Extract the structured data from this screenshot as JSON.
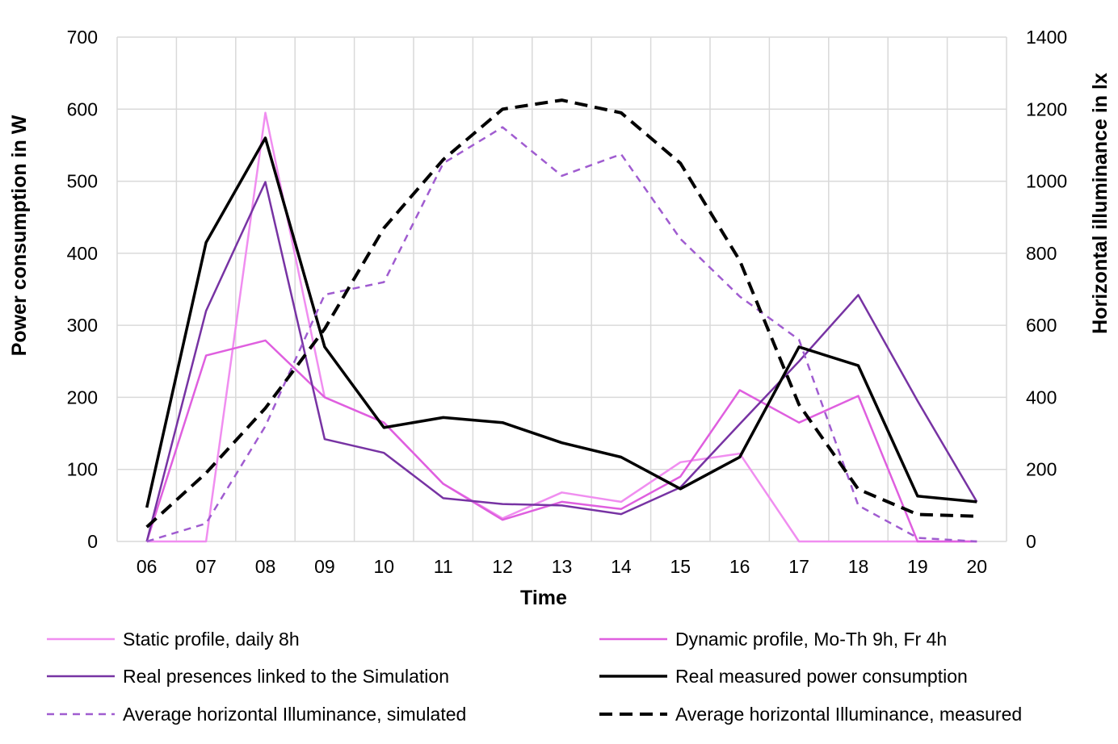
{
  "chart_data": {
    "type": "line",
    "title": "",
    "xlabel": "Time",
    "ylabel": "Power consumption in W",
    "y2label": "Horizontal illuminance in lx",
    "ylim": [
      0,
      700
    ],
    "y2lim": [
      0,
      1400
    ],
    "grid": true,
    "categories": [
      "06",
      "07",
      "08",
      "09",
      "10",
      "11",
      "12",
      "13",
      "14",
      "15",
      "16",
      "17",
      "18",
      "19",
      "20"
    ],
    "yticks": [
      "0",
      "100",
      "200",
      "300",
      "400",
      "500",
      "600",
      "700"
    ],
    "y2ticks": [
      "0",
      "200",
      "400",
      "600",
      "800",
      "1000",
      "1200",
      "1400"
    ],
    "series": [
      {
        "name": "Static profile, daily 8h",
        "axis": "left",
        "color": "#f08ef0",
        "width": 2.5,
        "dash": "",
        "values": [
          0,
          0,
          595,
          200,
          165,
          80,
          32,
          68,
          55,
          110,
          122,
          0,
          0,
          0,
          0
        ]
      },
      {
        "name": "Dynamic profile, Mo-Th 9h, Fr 4h",
        "axis": "left",
        "color": "#df5fdf",
        "width": 2.5,
        "dash": "",
        "values": [
          0,
          258,
          279,
          200,
          165,
          80,
          30,
          55,
          45,
          90,
          210,
          165,
          202,
          0,
          0
        ]
      },
      {
        "name": "Real presences linked to the Simulation",
        "axis": "left",
        "color": "#7733a3",
        "width": 2.5,
        "dash": "",
        "values": [
          0,
          320,
          499,
          142,
          123,
          60,
          52,
          50,
          38,
          75,
          163,
          250,
          342,
          195,
          55
        ]
      },
      {
        "name": "Real measured power consumption",
        "axis": "left",
        "color": "#000000",
        "width": 3.5,
        "dash": "",
        "values": [
          47,
          415,
          560,
          270,
          158,
          172,
          165,
          137,
          117,
          73,
          117,
          270,
          244,
          63,
          55
        ]
      },
      {
        "name": "Average horizontal Illuminance, simulated",
        "axis": "right",
        "color": "#a05cd0",
        "width": 2.5,
        "dash": "9,7",
        "values": [
          0,
          50,
          320,
          685,
          720,
          1050,
          1150,
          1015,
          1075,
          840,
          680,
          560,
          100,
          10,
          0
        ]
      },
      {
        "name": "Average horizontal Illuminance, measured",
        "axis": "right",
        "color": "#000000",
        "width": 4,
        "dash": "16,9",
        "values": [
          40,
          190,
          370,
          590,
          870,
          1060,
          1200,
          1225,
          1190,
          1050,
          780,
          380,
          145,
          75,
          70
        ]
      }
    ],
    "legend_position": "bottom"
  }
}
